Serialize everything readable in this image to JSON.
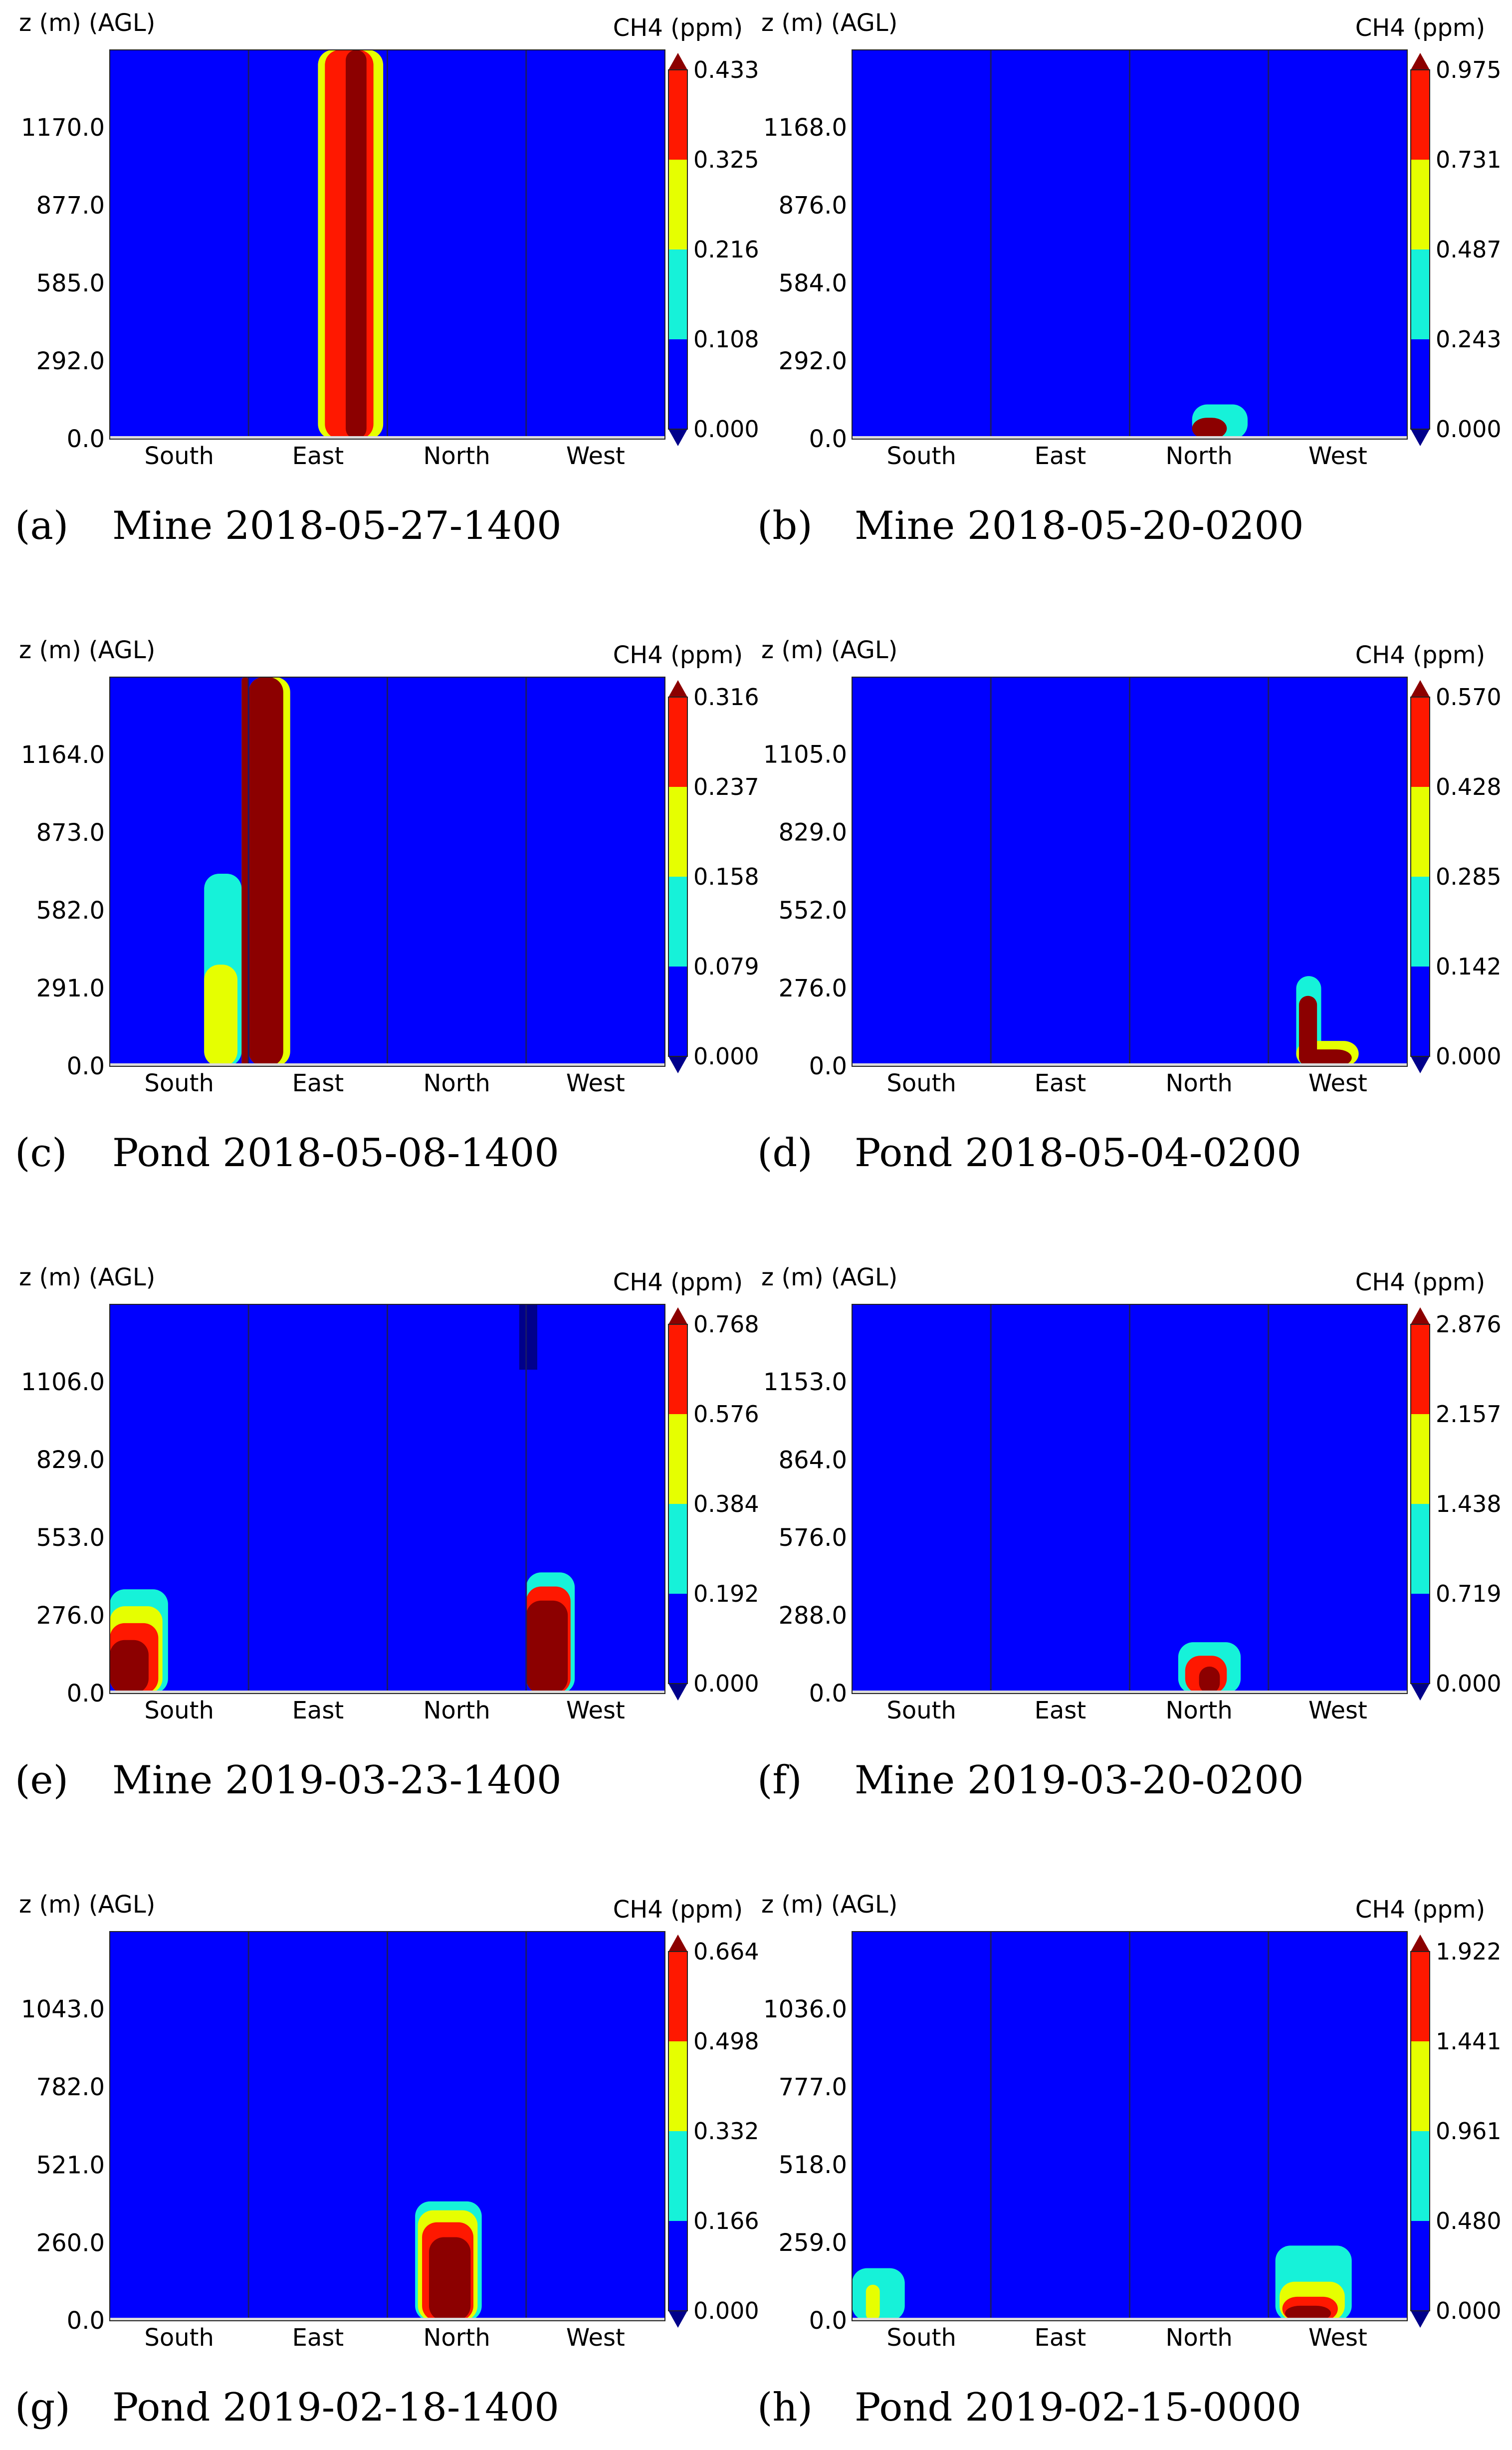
{
  "figure": {
    "zlabel": "z (m) (AGL)",
    "cbar_label": "CH4 (ppm)",
    "directions": [
      "South",
      "East",
      "North",
      "West"
    ]
  },
  "colors": {
    "background": "#0000ff",
    "cyan": "#16f2d9",
    "yellow": "#e6ff00",
    "red": "#ff1800",
    "darkred": "#8c0000",
    "navy": "#00008b",
    "divider": "#1a1a66"
  },
  "chart_data": [
    {
      "type": "heatmap",
      "caption_letter": "(a)",
      "caption_text": "Mine 2018-05-27-1400",
      "yticks": [
        "0.0",
        "292.0",
        "585.0",
        "877.0",
        "1170.0"
      ],
      "ymax": 1462,
      "cbar_ticks": [
        "0.000",
        "0.108",
        "0.216",
        "0.325",
        "0.433"
      ],
      "plumes": [
        {
          "dir": 1,
          "c0": 0.5,
          "c1": 0.97,
          "zmax": 1462,
          "cap": "yellow"
        },
        {
          "dir": 1,
          "c0": 0.55,
          "c1": 0.9,
          "zmax": 1462,
          "cap": "red"
        },
        {
          "dir": 1,
          "c0": 0.7,
          "c1": 0.85,
          "zmax": 1462,
          "cap": "darkred"
        }
      ]
    },
    {
      "type": "heatmap",
      "caption_letter": "(b)",
      "caption_text": "Mine 2018-05-20-0200",
      "yticks": [
        "0.0",
        "292.0",
        "584.0",
        "876.0",
        "1168.0"
      ],
      "ymax": 1460,
      "cbar_ticks": [
        "0.000",
        "0.243",
        "0.487",
        "0.731",
        "0.975"
      ],
      "plumes": [
        {
          "dir": 2,
          "c0": 0.45,
          "c1": 0.85,
          "zmax": 130,
          "cap": "cyan"
        },
        {
          "dir": 2,
          "c0": 0.45,
          "c1": 0.7,
          "zmax": 80,
          "cap": "darkred"
        }
      ]
    },
    {
      "type": "heatmap",
      "caption_letter": "(c)",
      "caption_text": "Pond 2018-05-08-1400",
      "yticks": [
        "0.0",
        "291.0",
        "582.0",
        "873.0",
        "1164.0"
      ],
      "ymax": 1455,
      "cbar_ticks": [
        "0.000",
        "0.079",
        "0.158",
        "0.237",
        "0.316"
      ],
      "plumes": [
        {
          "dir": 0,
          "c0": 0.68,
          "c1": 0.95,
          "zmax": 720,
          "cap": "cyan"
        },
        {
          "dir": 0,
          "c0": 0.68,
          "c1": 0.92,
          "zmax": 380,
          "cap": "yellow"
        },
        {
          "dir": 0,
          "c0": 0.95,
          "c1": 1.0,
          "zmax": 1455,
          "cap": "yellow"
        },
        {
          "dir": 1,
          "c0": 0.0,
          "c1": 0.3,
          "zmax": 1455,
          "cap": "yellow"
        },
        {
          "dir": 0,
          "c0": 0.95,
          "c1": 1.0,
          "zmax": 1455,
          "cap": "darkred"
        },
        {
          "dir": 1,
          "c0": 0.0,
          "c1": 0.25,
          "zmax": 1455,
          "cap": "darkred"
        }
      ]
    },
    {
      "type": "heatmap",
      "caption_letter": "(d)",
      "caption_text": "Pond 2018-05-04-0200",
      "yticks": [
        "0.0",
        "276.0",
        "552.0",
        "829.0",
        "1105.0"
      ],
      "ymax": 1380,
      "cbar_ticks": [
        "0.000",
        "0.142",
        "0.285",
        "0.428",
        "0.570"
      ],
      "plumes": [
        {
          "dir": 3,
          "c0": 0.2,
          "c1": 0.38,
          "zmax": 320,
          "cap": "cyan"
        },
        {
          "dir": 3,
          "c0": 0.2,
          "c1": 0.65,
          "zmax": 90,
          "cap": "yellow"
        },
        {
          "dir": 3,
          "c0": 0.22,
          "c1": 0.35,
          "zmax": 250,
          "cap": "darkred"
        },
        {
          "dir": 3,
          "c0": 0.22,
          "c1": 0.6,
          "zmax": 60,
          "cap": "darkred"
        }
      ]
    },
    {
      "type": "heatmap",
      "caption_letter": "(e)",
      "caption_text": "Mine 2019-03-23-1400",
      "yticks": [
        "0.0",
        "276.0",
        "553.0",
        "829.0",
        "1106.0"
      ],
      "ymax": 1382,
      "cbar_ticks": [
        "0.000",
        "0.192",
        "0.384",
        "0.576",
        "0.768"
      ],
      "plumes": [
        {
          "dir": 2,
          "c0": 0.95,
          "c1": 1.0,
          "zmax": 1382,
          "zmin": 1150,
          "cap": "navy"
        },
        {
          "dir": 3,
          "c0": 0.0,
          "c1": 0.08,
          "zmax": 1382,
          "zmin": 1150,
          "cap": "navy"
        },
        {
          "dir": 0,
          "c0": 0.0,
          "c1": 0.42,
          "zmax": 370,
          "cap": "cyan"
        },
        {
          "dir": 0,
          "c0": 0.0,
          "c1": 0.38,
          "zmax": 310,
          "cap": "yellow"
        },
        {
          "dir": 0,
          "c0": 0.0,
          "c1": 0.35,
          "zmax": 250,
          "cap": "red"
        },
        {
          "dir": 0,
          "c0": 0.0,
          "c1": 0.28,
          "zmax": 190,
          "cap": "darkred"
        },
        {
          "dir": 3,
          "c0": 0.0,
          "c1": 0.35,
          "zmax": 430,
          "cap": "cyan"
        },
        {
          "dir": 3,
          "c0": 0.0,
          "c1": 0.32,
          "zmax": 380,
          "cap": "red"
        },
        {
          "dir": 3,
          "c0": 0.0,
          "c1": 0.3,
          "zmax": 330,
          "cap": "darkred"
        }
      ]
    },
    {
      "type": "heatmap",
      "caption_letter": "(f)",
      "caption_text": "Mine 2019-03-20-0200",
      "yticks": [
        "0.0",
        "288.0",
        "576.0",
        "864.0",
        "1153.0"
      ],
      "ymax": 1441,
      "cbar_ticks": [
        "0.000",
        "0.719",
        "1.438",
        "2.157",
        "2.876"
      ],
      "plumes": [
        {
          "dir": 2,
          "c0": 0.35,
          "c1": 0.8,
          "zmax": 190,
          "cap": "cyan"
        },
        {
          "dir": 2,
          "c0": 0.4,
          "c1": 0.7,
          "zmax": 140,
          "cap": "red"
        },
        {
          "dir": 2,
          "c0": 0.5,
          "c1": 0.65,
          "zmax": 100,
          "cap": "darkred"
        }
      ]
    },
    {
      "type": "heatmap",
      "caption_letter": "(g)",
      "caption_text": "Pond 2019-02-18-1400",
      "yticks": [
        "0.0",
        "260.0",
        "521.0",
        "782.0",
        "1043.0"
      ],
      "ymax": 1304,
      "cbar_ticks": [
        "0.000",
        "0.166",
        "0.332",
        "0.498",
        "0.664"
      ],
      "plumes": [
        {
          "dir": 2,
          "c0": 0.2,
          "c1": 0.68,
          "zmax": 400,
          "cap": "cyan"
        },
        {
          "dir": 2,
          "c0": 0.22,
          "c1": 0.65,
          "zmax": 370,
          "cap": "yellow"
        },
        {
          "dir": 2,
          "c0": 0.25,
          "c1": 0.62,
          "zmax": 330,
          "cap": "red"
        },
        {
          "dir": 2,
          "c0": 0.3,
          "c1": 0.6,
          "zmax": 280,
          "cap": "darkred"
        }
      ]
    },
    {
      "type": "heatmap",
      "caption_letter": "(h)",
      "caption_text": "Pond 2019-02-15-0000",
      "yticks": [
        "0.0",
        "259.0",
        "518.0",
        "777.0",
        "1036.0"
      ],
      "ymax": 1295,
      "cbar_ticks": [
        "0.000",
        "0.480",
        "0.961",
        "1.441",
        "1.922"
      ],
      "plumes": [
        {
          "dir": 0,
          "c0": 0.0,
          "c1": 0.38,
          "zmax": 175,
          "cap": "cyan"
        },
        {
          "dir": 0,
          "c0": 0.1,
          "c1": 0.2,
          "zmax": 120,
          "cap": "yellow"
        },
        {
          "dir": 3,
          "c0": 0.05,
          "c1": 0.6,
          "zmax": 250,
          "cap": "cyan"
        },
        {
          "dir": 3,
          "c0": 0.08,
          "c1": 0.55,
          "zmax": 130,
          "cap": "yellow"
        },
        {
          "dir": 3,
          "c0": 0.1,
          "c1": 0.5,
          "zmax": 80,
          "cap": "red"
        },
        {
          "dir": 3,
          "c0": 0.12,
          "c1": 0.45,
          "zmax": 50,
          "cap": "darkred"
        }
      ]
    }
  ]
}
